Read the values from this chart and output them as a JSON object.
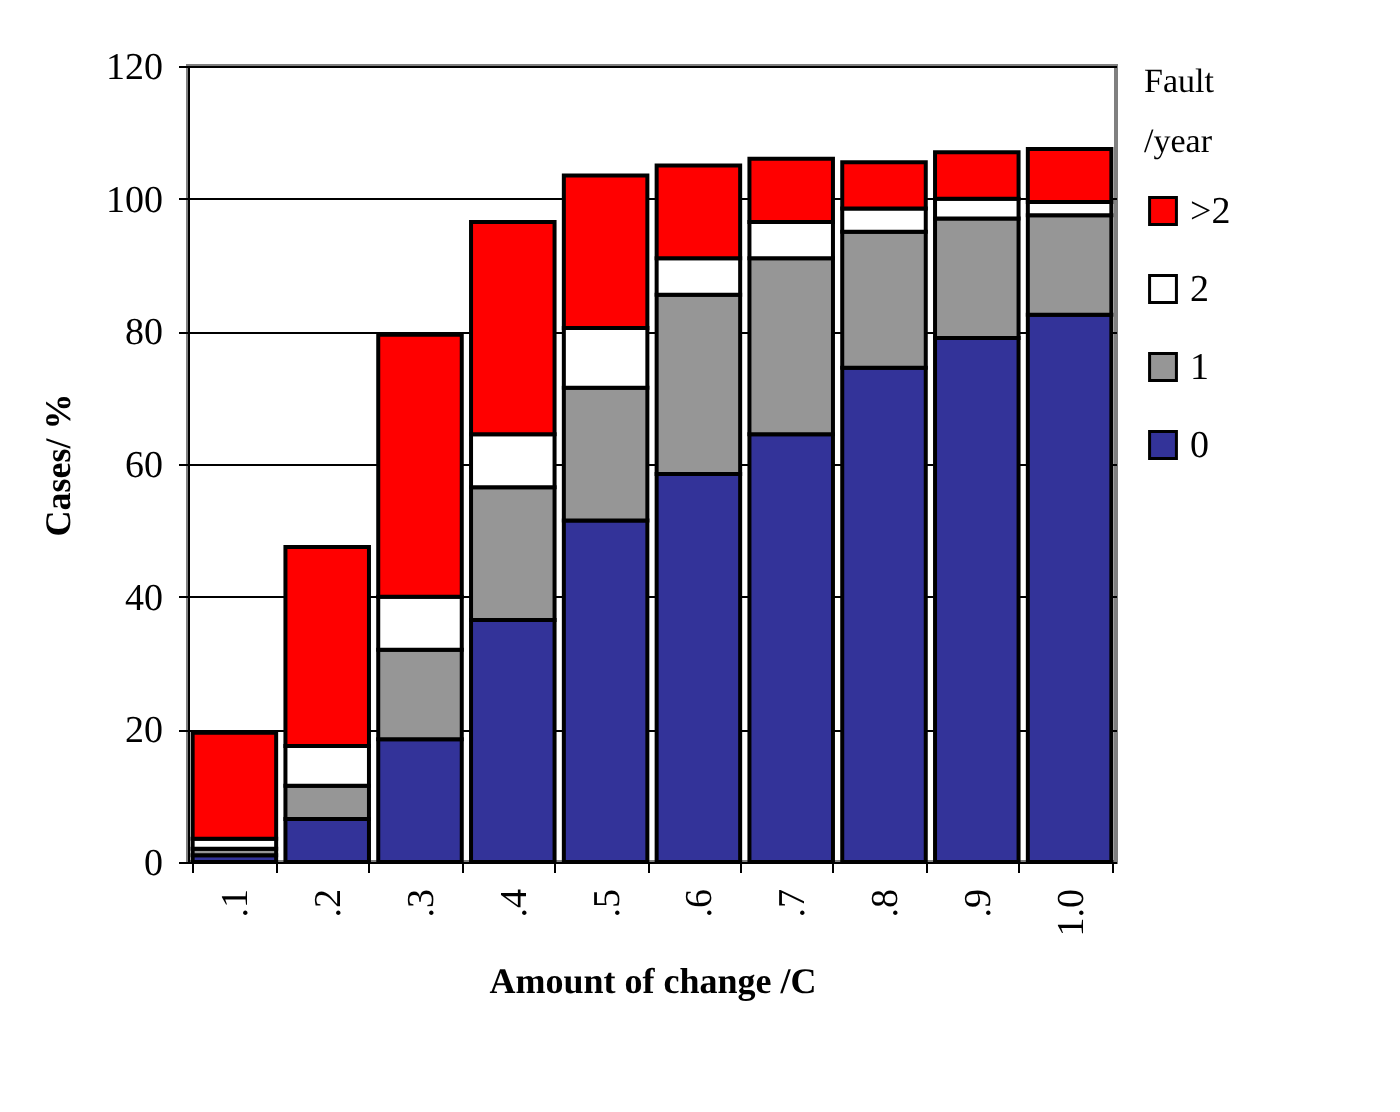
{
  "chart_data": {
    "type": "bar",
    "stacked": true,
    "xlabel": "Amount of change /C",
    "ylabel": "Cases/ %",
    "legend_title": "Fault /year",
    "categories": [
      ".1",
      ".2",
      ".3",
      ".4",
      ".5",
      ".6",
      ".7",
      ".8",
      ".9",
      "1.0"
    ],
    "series": [
      {
        "name": "0",
        "color": "#333399",
        "values": [
          1,
          6.5,
          18.5,
          36.5,
          51.5,
          58.5,
          64.5,
          74.5,
          79,
          82.5
        ]
      },
      {
        "name": "1",
        "color": "#969696",
        "values": [
          1,
          5,
          13.5,
          20,
          20,
          27,
          26.5,
          20.5,
          18,
          15
        ]
      },
      {
        "name": "2",
        "color": "#ffffff",
        "values": [
          1.5,
          6,
          8,
          8,
          9,
          5.5,
          5.5,
          3.5,
          3,
          2
        ]
      },
      {
        "name": ">2",
        "color": "#ff0000",
        "values": [
          16,
          30,
          39.5,
          32,
          23,
          14,
          9.5,
          7,
          7,
          8
        ]
      }
    ],
    "ylim": [
      0,
      120
    ],
    "yticks": [
      0,
      20,
      40,
      60,
      80,
      100,
      120
    ],
    "grid": "y",
    "legend": "right"
  }
}
